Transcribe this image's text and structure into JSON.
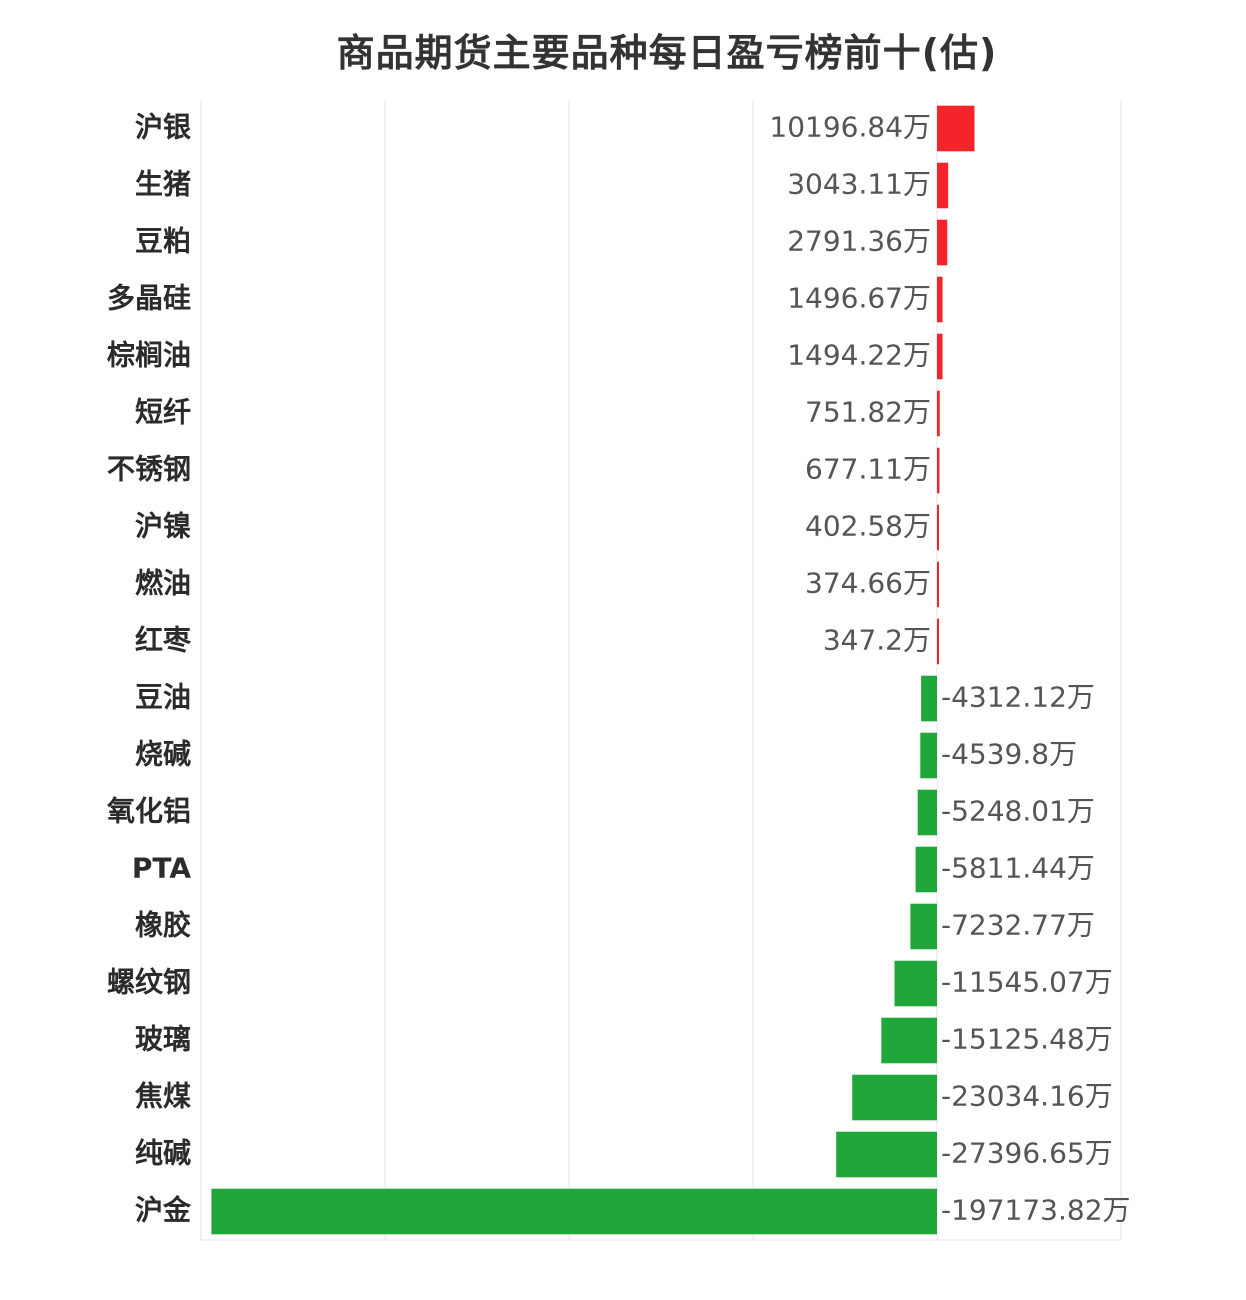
{
  "chart_data": {
    "type": "bar",
    "orientation": "horizontal",
    "title": "商品期货主要品种每日盈亏榜前十(估)",
    "unit": "万",
    "categories": [
      "沪银",
      "生猪",
      "豆粕",
      "多晶硅",
      "棕榈油",
      "短纤",
      "不锈钢",
      "沪镍",
      "燃油",
      "红枣",
      "豆油",
      "烧碱",
      "氧化铝",
      "PTA",
      "橡胶",
      "螺纹钢",
      "玻璃",
      "焦煤",
      "纯碱",
      "沪金"
    ],
    "values": [
      10196.84,
      3043.11,
      2791.36,
      1496.67,
      1494.22,
      751.82,
      677.11,
      402.58,
      374.66,
      347.2,
      -4312.12,
      -4539.8,
      -5248.01,
      -5811.44,
      -7232.77,
      -11545.07,
      -15125.48,
      -23034.16,
      -27396.65,
      -197173.82
    ],
    "value_labels": [
      "10196.84万",
      "3043.11万",
      "2791.36万",
      "1496.67万",
      "1494.22万",
      "751.82万",
      "677.11万",
      "402.58万",
      "374.66万",
      "347.2万",
      "-4312.12万",
      "-4539.8万",
      "-5248.01万",
      "-5811.44万",
      "-7232.77万",
      "-11545.07万",
      "-15125.48万",
      "-23034.16万",
      "-27396.65万",
      "-197173.82万"
    ],
    "xlim": [
      -200000,
      50000
    ],
    "grid": true,
    "legend": "none",
    "colors": {
      "positive": "#f5232a",
      "negative": "#21a63a",
      "grid": "#e6e6e6"
    }
  }
}
